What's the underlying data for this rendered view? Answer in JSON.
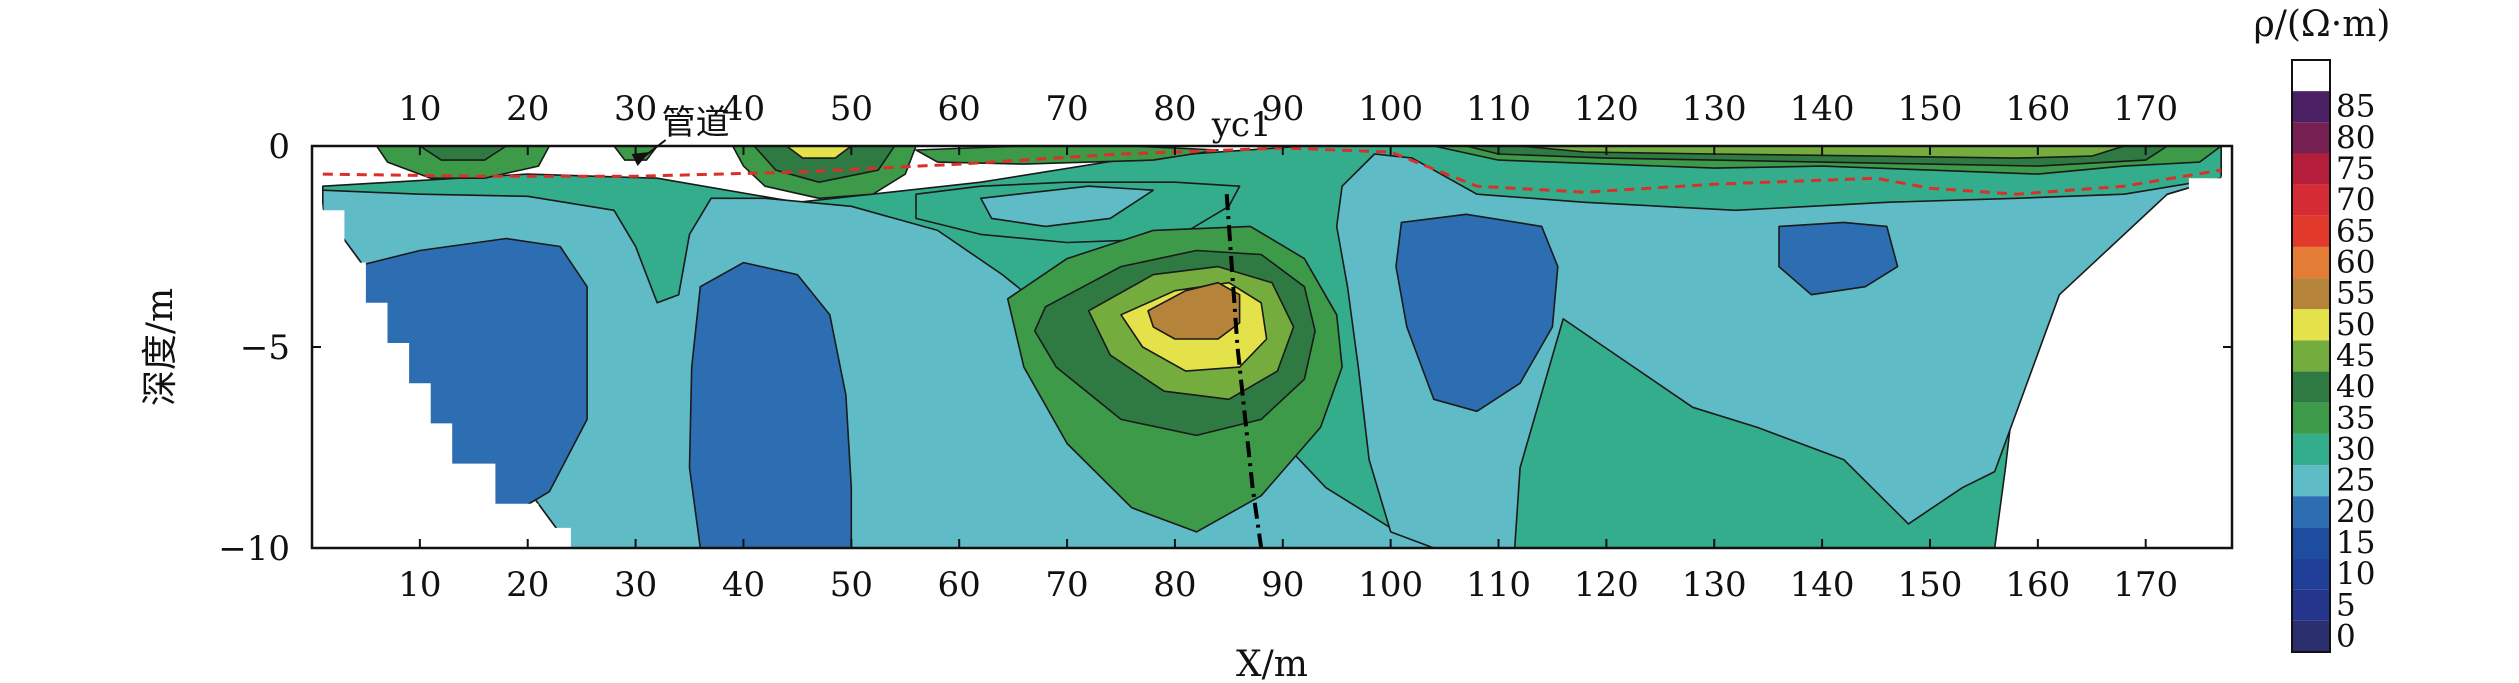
{
  "chart_data": {
    "type": "heatmap",
    "subtype": "filled-contour resistivity cross-section",
    "title": "",
    "xlabel": "X/m",
    "ylabel": "深度/m",
    "colorbar_label": "ρ/(Ω·m)",
    "xlim": [
      0,
      178
    ],
    "ylim": [
      -10,
      0
    ],
    "x_ticks": [
      10,
      20,
      30,
      40,
      50,
      60,
      70,
      80,
      90,
      100,
      110,
      120,
      130,
      140,
      150,
      160,
      170
    ],
    "x_tick_labels": [
      "10",
      "20",
      "30",
      "40",
      "50",
      "60",
      "70",
      "80",
      "90",
      "100",
      "110",
      "120",
      "130",
      "140",
      "150",
      "160",
      "170"
    ],
    "y_ticks": [
      0,
      -5,
      -10
    ],
    "y_tick_labels": [
      "0",
      "−5",
      "−10"
    ],
    "top_ticks_mirrored": true,
    "grid": false,
    "contour_levels": [
      0,
      5,
      10,
      15,
      20,
      25,
      30,
      35,
      40,
      45,
      50,
      55,
      60,
      65,
      70,
      75,
      80,
      85
    ],
    "level_labels": [
      "0",
      "5",
      "10",
      "15",
      "20",
      "25",
      "30",
      "35",
      "40",
      "45",
      "50",
      "55",
      "60",
      "65",
      "70",
      "75",
      "80",
      "85"
    ],
    "level_colors": [
      "#2b2f6e",
      "#26358c",
      "#1f3f98",
      "#1e4da0",
      "#2d6eb3",
      "#5fbcc7",
      "#34ad8c",
      "#3d9a48",
      "#2f7a43",
      "#74ad3e",
      "#e3e24a",
      "#b5833a",
      "#e37d35",
      "#e23a2a",
      "#d52b35",
      "#b51e3a",
      "#752050",
      "#4c2064",
      "#ffffff"
    ],
    "annotations": [
      {
        "text": "管道",
        "x": 30,
        "y": 0
      },
      {
        "text": "yc1",
        "x": 86,
        "y": 0
      }
    ],
    "features": [
      {
        "name": "fault yc1",
        "style": "black dash-dot",
        "points": [
          [
            84.8,
            -1.2
          ],
          [
            85.8,
            -5.0
          ],
          [
            87.2,
            -8.5
          ],
          [
            88.0,
            -10.0
          ]
        ]
      },
      {
        "name": "interface",
        "style": "red dashed",
        "points": [
          [
            1,
            -0.7
          ],
          [
            15,
            -0.75
          ],
          [
            30,
            -0.75
          ],
          [
            45,
            -0.65
          ],
          [
            60,
            -0.45
          ],
          [
            75,
            -0.2
          ],
          [
            90,
            -0.05
          ],
          [
            100,
            -0.15
          ],
          [
            108,
            -1.0
          ],
          [
            118,
            -1.15
          ],
          [
            130,
            -0.95
          ],
          [
            145,
            -0.8
          ],
          [
            150,
            -1.05
          ],
          [
            158,
            -1.2
          ],
          [
            168,
            -1.0
          ],
          [
            177,
            -0.6
          ]
        ]
      }
    ],
    "regions": [
      {
        "level": 25,
        "name": "upper and middle body",
        "points": [
          [
            1,
            -1.0
          ],
          [
            20,
            -0.7
          ],
          [
            32,
            -0.8
          ],
          [
            45,
            -1.4
          ],
          [
            62,
            -0.9
          ],
          [
            76,
            -0.3
          ],
          [
            92,
            0
          ],
          [
            130,
            0
          ],
          [
            177,
            0
          ],
          [
            177,
            -0.8
          ],
          [
            172,
            -1.2
          ],
          [
            160,
            -3.5
          ],
          [
            158,
            -5.7
          ],
          [
            157,
            -8.0
          ],
          [
            156,
            -10.0
          ],
          [
            24,
            -10.0
          ],
          [
            1,
            -1.6
          ]
        ]
      },
      {
        "level": 20,
        "name": "left low zone",
        "points": [
          [
            1,
            -1.1
          ],
          [
            10,
            -1.2
          ],
          [
            20,
            -1.25
          ],
          [
            28,
            -1.6
          ],
          [
            30,
            -2.5
          ],
          [
            32,
            -3.9
          ],
          [
            34,
            -3.7
          ],
          [
            35,
            -2.2
          ],
          [
            37,
            -1.3
          ],
          [
            42,
            -1.3
          ],
          [
            50,
            -1.5
          ],
          [
            58,
            -2.1
          ],
          [
            64,
            -3.2
          ],
          [
            70,
            -4.5
          ],
          [
            78,
            -5.6
          ],
          [
            88,
            -6.8
          ],
          [
            94,
            -8.5
          ],
          [
            100,
            -9.5
          ],
          [
            104,
            -10.0
          ],
          [
            24,
            -10.0
          ],
          [
            1,
            -1.6
          ]
        ]
      },
      {
        "level": 20,
        "name": "right low zone",
        "points": [
          [
            102,
            -0.3
          ],
          [
            108,
            -1.2
          ],
          [
            118,
            -1.4
          ],
          [
            132,
            -1.6
          ],
          [
            146,
            -1.4
          ],
          [
            158,
            -1.3
          ],
          [
            168,
            -1.2
          ],
          [
            177,
            -0.8
          ],
          [
            172,
            -1.2
          ],
          [
            162,
            -3.7
          ],
          [
            156,
            -8.1
          ],
          [
            153,
            -8.5
          ],
          [
            148,
            -9.4
          ],
          [
            145,
            -8.6
          ],
          [
            142,
            -7.8
          ],
          [
            134,
            -7.0
          ],
          [
            128,
            -6.5
          ],
          [
            122,
            -5.4
          ],
          [
            116,
            -4.3
          ],
          [
            112,
            -8.0
          ],
          [
            111.5,
            -10.0
          ],
          [
            104,
            -10.0
          ],
          [
            100,
            -9.6
          ],
          [
            98,
            -7.8
          ],
          [
            97,
            -5.5
          ],
          [
            96,
            -3.5
          ],
          [
            95,
            -2.0
          ],
          [
            95.5,
            -1.0
          ],
          [
            98.5,
            -0.2
          ]
        ]
      },
      {
        "level": 15,
        "name": "left deep low",
        "points": [
          [
            4,
            -3.0
          ],
          [
            10,
            -2.6
          ],
          [
            18,
            -2.3
          ],
          [
            23,
            -2.5
          ],
          [
            25.5,
            -3.5
          ],
          [
            25.5,
            -6.8
          ],
          [
            22,
            -8.6
          ],
          [
            17,
            -9.4
          ],
          [
            13,
            -9.2
          ],
          [
            9,
            -8.2
          ],
          [
            5,
            -5.6
          ],
          [
            3,
            -3.8
          ]
        ]
      },
      {
        "level": 15,
        "name": "central deep low",
        "points": [
          [
            36,
            -3.5
          ],
          [
            40,
            -2.9
          ],
          [
            45,
            -3.2
          ],
          [
            48,
            -4.2
          ],
          [
            49.5,
            -6.2
          ],
          [
            50,
            -8.5
          ],
          [
            50,
            -10.0
          ],
          [
            36,
            -10.0
          ],
          [
            35,
            -8.0
          ],
          [
            35.2,
            -5.5
          ]
        ]
      },
      {
        "level": 15,
        "name": "right low pocket",
        "points": [
          [
            101,
            -1.9
          ],
          [
            107,
            -1.7
          ],
          [
            114,
            -2.0
          ],
          [
            115.5,
            -3.0
          ],
          [
            115,
            -4.5
          ],
          [
            112,
            -5.9
          ],
          [
            108,
            -6.6
          ],
          [
            104,
            -6.3
          ],
          [
            101.5,
            -4.5
          ],
          [
            100.5,
            -3.0
          ]
        ]
      },
      {
        "level": 15,
        "name": "small low pocket",
        "points": [
          [
            136,
            -2.0
          ],
          [
            142,
            -1.9
          ],
          [
            146,
            -2.0
          ],
          [
            147,
            -3.0
          ],
          [
            144,
            -3.5
          ],
          [
            139,
            -3.7
          ],
          [
            136,
            -3.0
          ]
        ]
      },
      {
        "level": 25,
        "name": "left mid lobe",
        "points": [
          [
            56,
            -1.2
          ],
          [
            62,
            -1.0
          ],
          [
            70,
            -0.9
          ],
          [
            80,
            -0.9
          ],
          [
            86,
            -1.0
          ],
          [
            85,
            -1.5
          ],
          [
            80,
            -2.3
          ],
          [
            70,
            -2.4
          ],
          [
            62,
            -2.2
          ],
          [
            56,
            -1.8
          ]
        ]
      },
      {
        "level": 20,
        "name": "upper low pocket",
        "points": [
          [
            62,
            -1.3
          ],
          [
            72,
            -1.0
          ],
          [
            78,
            -1.1
          ],
          [
            74,
            -1.8
          ],
          [
            68,
            -2.0
          ],
          [
            63,
            -1.8
          ]
        ]
      },
      {
        "level": 30,
        "name": "anomaly outer ring",
        "points": [
          [
            70,
            -2.8
          ],
          [
            78,
            -2.1
          ],
          [
            87,
            -2.0
          ],
          [
            92,
            -2.8
          ],
          [
            95,
            -4.2
          ],
          [
            95.5,
            -5.5
          ],
          [
            93.5,
            -7.0
          ],
          [
            88,
            -8.7
          ],
          [
            82,
            -9.6
          ],
          [
            76,
            -9.0
          ],
          [
            70,
            -7.4
          ],
          [
            66,
            -5.5
          ],
          [
            64.5,
            -3.8
          ]
        ]
      },
      {
        "level": 35,
        "name": "anomaly ring 2",
        "points": [
          [
            68,
            -4.0
          ],
          [
            75,
            -3.0
          ],
          [
            82,
            -2.6
          ],
          [
            88,
            -2.7
          ],
          [
            92,
            -3.5
          ],
          [
            93,
            -4.6
          ],
          [
            92,
            -5.8
          ],
          [
            88,
            -6.8
          ],
          [
            82,
            -7.2
          ],
          [
            75,
            -6.8
          ],
          [
            69,
            -5.5
          ],
          [
            67,
            -4.6
          ]
        ]
      },
      {
        "level": 40,
        "name": "anomaly ring 3",
        "points": [
          [
            72,
            -4.1
          ],
          [
            78,
            -3.2
          ],
          [
            84,
            -3.0
          ],
          [
            89,
            -3.4
          ],
          [
            91,
            -4.5
          ],
          [
            89.5,
            -5.6
          ],
          [
            85,
            -6.3
          ],
          [
            79,
            -6.1
          ],
          [
            74,
            -5.2
          ]
        ]
      },
      {
        "level": 45,
        "name": "anomaly ring 4",
        "points": [
          [
            75,
            -4.2
          ],
          [
            80,
            -3.6
          ],
          [
            85,
            -3.4
          ],
          [
            88,
            -3.9
          ],
          [
            88.5,
            -4.8
          ],
          [
            86,
            -5.5
          ],
          [
            81,
            -5.6
          ],
          [
            77,
            -5.0
          ]
        ]
      },
      {
        "level": 50,
        "name": "anomaly core",
        "points": [
          [
            77.5,
            -4.1
          ],
          [
            81,
            -3.6
          ],
          [
            84,
            -3.4
          ],
          [
            86,
            -3.7
          ],
          [
            86,
            -4.4
          ],
          [
            84,
            -4.8
          ],
          [
            80,
            -4.8
          ],
          [
            78,
            -4.5
          ]
        ]
      },
      {
        "level": 30,
        "name": "surface lobe 1",
        "points": [
          [
            6,
            0
          ],
          [
            22,
            0
          ],
          [
            21,
            -0.5
          ],
          [
            16,
            -0.8
          ],
          [
            11,
            -0.8
          ],
          [
            7,
            -0.4
          ]
        ]
      },
      {
        "level": 35,
        "name": "surface lobe 1 core",
        "points": [
          [
            10,
            0
          ],
          [
            18,
            0
          ],
          [
            16,
            -0.35
          ],
          [
            12,
            -0.35
          ]
        ]
      },
      {
        "level": 30,
        "name": "surface lobe 2",
        "points": [
          [
            28,
            0
          ],
          [
            32,
            0
          ],
          [
            31,
            -0.35
          ],
          [
            29,
            -0.35
          ]
        ]
      },
      {
        "level": 30,
        "name": "surface lobe 3",
        "points": [
          [
            39,
            0
          ],
          [
            56,
            0
          ],
          [
            55,
            -0.7
          ],
          [
            52,
            -1.2
          ],
          [
            47,
            -1.3
          ],
          [
            42,
            -1.0
          ],
          [
            40,
            -0.5
          ]
        ]
      },
      {
        "level": 35,
        "name": "surface lobe 3 ring",
        "points": [
          [
            41,
            0
          ],
          [
            54,
            0
          ],
          [
            52.5,
            -0.6
          ],
          [
            47,
            -0.9
          ],
          [
            43,
            -0.6
          ]
        ]
      },
      {
        "level": 45,
        "name": "surface lobe 3 core",
        "points": [
          [
            44,
            0
          ],
          [
            50,
            0
          ],
          [
            48.5,
            -0.3
          ],
          [
            45.5,
            -0.3
          ]
        ]
      },
      {
        "level": 30,
        "name": "surface band 4",
        "points": [
          [
            56,
            -0.1
          ],
          [
            66,
            0
          ],
          [
            76,
            0
          ],
          [
            84,
            -0.1
          ],
          [
            78,
            -0.35
          ],
          [
            66,
            -0.45
          ],
          [
            58,
            -0.4
          ]
        ]
      },
      {
        "level": 30,
        "name": "surface band 5",
        "points": [
          [
            104,
            0
          ],
          [
            177,
            0
          ],
          [
            175,
            -0.4
          ],
          [
            168,
            -0.5
          ],
          [
            160,
            -0.7
          ],
          [
            150,
            -0.6
          ],
          [
            140,
            -0.5
          ],
          [
            130,
            -0.55
          ],
          [
            120,
            -0.45
          ],
          [
            110,
            -0.35
          ]
        ]
      },
      {
        "level": 35,
        "name": "surface band 5 ring",
        "points": [
          [
            107,
            0
          ],
          [
            172,
            0
          ],
          [
            170,
            -0.35
          ],
          [
            160,
            -0.5
          ],
          [
            150,
            -0.45
          ],
          [
            140,
            -0.4
          ],
          [
            130,
            -0.35
          ],
          [
            120,
            -0.3
          ],
          [
            110,
            -0.2
          ]
        ]
      },
      {
        "level": 40,
        "name": "surface band 5 core",
        "points": [
          [
            112,
            0
          ],
          [
            168,
            0
          ],
          [
            165,
            -0.25
          ],
          [
            158,
            -0.3
          ],
          [
            145,
            -0.25
          ],
          [
            130,
            -0.2
          ],
          [
            118,
            -0.15
          ]
        ]
      }
    ],
    "legend_position": "right (colorbar)"
  }
}
